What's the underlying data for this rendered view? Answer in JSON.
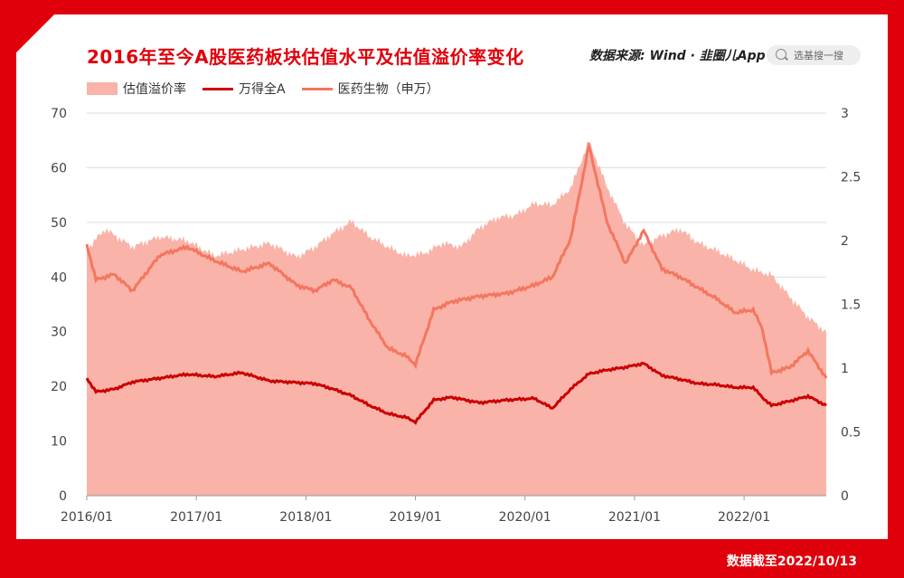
{
  "title": "2016年至今A股医药板块估值水平及估值溢价率变化",
  "source": "数据来源: Wind · ",
  "source_brand": "韭圈儿App",
  "search_placeholder": "选基搜一搜",
  "footer": "数据截至2022/10/13",
  "watermark": "韭圈儿",
  "colors": {
    "background": "#e0000b",
    "premium_area": "#f9b3a9",
    "wind_a": "#cc0000",
    "pharma": "#f4765f"
  },
  "icons": {
    "search": "search-icon"
  },
  "chart_data": {
    "type": "line",
    "legend_placement": "top-left",
    "grid": true,
    "x_ticks": [
      "2016/01",
      "2017/01",
      "2018/01",
      "2019/01",
      "2020/01",
      "2021/01",
      "2022/01"
    ],
    "x_range": [
      "2016/01",
      "2022/10"
    ],
    "y_left": {
      "range": [
        0,
        70
      ],
      "ticks": [
        "0",
        "10",
        "20",
        "30",
        "40",
        "50",
        "60",
        "70"
      ]
    },
    "y_right": {
      "range": [
        0,
        3
      ],
      "ticks": [
        "0",
        "0.5",
        "1",
        "1.5",
        "2",
        "2.5",
        "3"
      ]
    },
    "series": [
      {
        "name": "估值溢价率",
        "kind": "area",
        "axis": "right",
        "x": [
          "2016/01",
          "2016/03",
          "2016/06",
          "2016/09",
          "2016/12",
          "2017/03",
          "2017/06",
          "2017/09",
          "2017/12",
          "2018/02",
          "2018/04",
          "2018/06",
          "2018/08",
          "2018/10",
          "2018/12",
          "2019/02",
          "2019/04",
          "2019/06",
          "2019/08",
          "2019/10",
          "2019/12",
          "2020/02",
          "2020/04",
          "2020/06",
          "2020/08",
          "2020/10",
          "2020/12",
          "2021/02",
          "2021/04",
          "2021/06",
          "2021/08",
          "2021/10",
          "2021/12",
          "2022/02",
          "2022/04",
          "2022/06",
          "2022/08",
          "2022/10"
        ],
        "values": [
          1.93,
          2.09,
          1.95,
          2.03,
          2.0,
          1.88,
          1.93,
          1.98,
          1.87,
          1.95,
          2.06,
          2.15,
          2.03,
          1.95,
          1.88,
          1.9,
          1.98,
          1.95,
          2.1,
          2.18,
          2.2,
          2.29,
          2.28,
          2.41,
          2.78,
          2.42,
          2.13,
          1.96,
          2.04,
          2.09,
          1.98,
          1.92,
          1.85,
          1.77,
          1.73,
          1.56,
          1.4,
          1.28
        ]
      },
      {
        "name": "万得全A",
        "kind": "line",
        "axis": "left",
        "x": [
          "2016/01",
          "2016/02",
          "2016/04",
          "2016/06",
          "2016/09",
          "2016/12",
          "2017/03",
          "2017/06",
          "2017/09",
          "2017/12",
          "2018/02",
          "2018/04",
          "2018/06",
          "2018/08",
          "2018/10",
          "2018/12",
          "2019/01",
          "2019/03",
          "2019/05",
          "2019/08",
          "2019/11",
          "2020/02",
          "2020/04",
          "2020/06",
          "2020/08",
          "2020/10",
          "2020/12",
          "2021/02",
          "2021/04",
          "2021/06",
          "2021/08",
          "2021/10",
          "2021/12",
          "2022/02",
          "2022/03",
          "2022/04",
          "2022/06",
          "2022/08",
          "2022/10"
        ],
        "values": [
          21.5,
          19.0,
          19.5,
          20.8,
          21.5,
          22.2,
          21.8,
          22.5,
          21.0,
          20.7,
          20.5,
          19.5,
          18.3,
          16.5,
          15.0,
          14.3,
          13.5,
          17.5,
          18.0,
          17.0,
          17.5,
          17.8,
          16.0,
          19.5,
          22.3,
          23.0,
          23.5,
          24.2,
          22.0,
          21.3,
          20.5,
          20.3,
          19.8,
          19.8,
          18.0,
          16.5,
          17.3,
          18.2,
          16.5
        ]
      },
      {
        "name": "医药生物（申万）",
        "kind": "line",
        "axis": "left",
        "x": [
          "2016/01",
          "2016/02",
          "2016/04",
          "2016/06",
          "2016/09",
          "2016/12",
          "2017/03",
          "2017/06",
          "2017/09",
          "2017/12",
          "2018/02",
          "2018/04",
          "2018/06",
          "2018/08",
          "2018/10",
          "2018/12",
          "2019/01",
          "2019/03",
          "2019/05",
          "2019/08",
          "2019/11",
          "2020/02",
          "2020/04",
          "2020/06",
          "2020/08",
          "2020/10",
          "2020/12",
          "2021/02",
          "2021/04",
          "2021/06",
          "2021/08",
          "2021/10",
          "2021/12",
          "2022/02",
          "2022/03",
          "2022/04",
          "2022/06",
          "2022/08",
          "2022/10"
        ],
        "values": [
          46.0,
          39.5,
          40.5,
          37.5,
          44.0,
          45.5,
          43.0,
          41.0,
          42.5,
          38.5,
          37.5,
          39.5,
          38.0,
          32.0,
          27.0,
          25.5,
          24.0,
          34.0,
          35.5,
          36.5,
          37.0,
          38.5,
          40.0,
          47.0,
          64.0,
          50.0,
          42.5,
          48.5,
          41.5,
          40.0,
          38.0,
          36.0,
          33.5,
          34.0,
          30.5,
          22.5,
          23.5,
          26.5,
          21.5
        ]
      }
    ]
  }
}
